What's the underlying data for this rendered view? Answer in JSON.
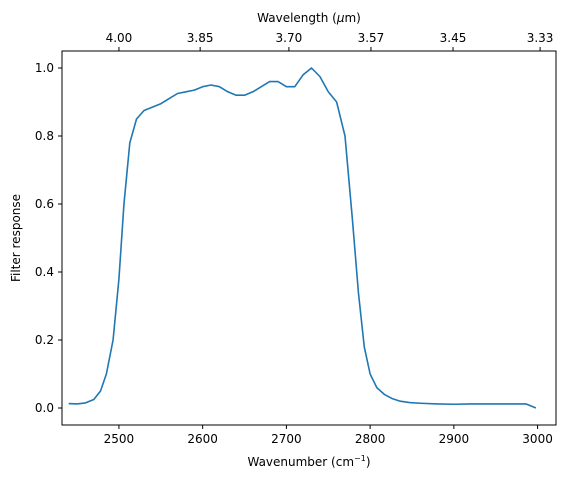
{
  "chart_data": {
    "type": "line",
    "xlabel": "Wavenumber (cm",
    "xlabel_sup": "−1",
    "xlabel_tail": ")",
    "ylabel": "Filter response",
    "top_label": "Wavelength (",
    "top_label_mu": "μ",
    "top_label_tail": "m)",
    "xlim": [
      2432,
      3022
    ],
    "ylim": [
      -0.05,
      1.05
    ],
    "grid": false,
    "legend": "none",
    "line_color": "#1f77b4",
    "xticks": [
      2500,
      2600,
      2700,
      2800,
      2900,
      3000
    ],
    "xtick_labels": [
      "2500",
      "2600",
      "2700",
      "2800",
      "2900",
      "3000"
    ],
    "yticks": [
      0.0,
      0.2,
      0.4,
      0.6,
      0.8,
      1.0
    ],
    "ytick_labels": [
      "0.0",
      "0.2",
      "0.4",
      "0.6",
      "0.8",
      "1.0"
    ],
    "top_ticks": [
      2500,
      2597,
      2703,
      2801,
      2899,
      3003
    ],
    "top_tick_labels": [
      "4.00",
      "3.85",
      "3.70",
      "3.57",
      "3.45",
      "3.33"
    ],
    "series": [
      {
        "x": [
          2440,
          2450,
          2460,
          2470,
          2478,
          2485,
          2493,
          2500,
          2506,
          2513,
          2521,
          2530,
          2540,
          2550,
          2560,
          2570,
          2580,
          2590,
          2600,
          2610,
          2620,
          2630,
          2640,
          2650,
          2660,
          2670,
          2680,
          2690,
          2700,
          2710,
          2720,
          2730,
          2740,
          2750,
          2760,
          2770,
          2779,
          2786,
          2793,
          2800,
          2808,
          2817,
          2826,
          2836,
          2847,
          2860,
          2880,
          2900,
          2920,
          2940,
          2960,
          2980,
          2986,
          2993,
          2998
        ],
        "y": [
          0.013,
          0.012,
          0.015,
          0.025,
          0.05,
          0.1,
          0.2,
          0.38,
          0.6,
          0.78,
          0.85,
          0.875,
          0.885,
          0.895,
          0.91,
          0.925,
          0.93,
          0.935,
          0.945,
          0.95,
          0.945,
          0.93,
          0.92,
          0.92,
          0.93,
          0.945,
          0.96,
          0.96,
          0.945,
          0.945,
          0.98,
          1.0,
          0.975,
          0.93,
          0.9,
          0.8,
          0.55,
          0.34,
          0.18,
          0.1,
          0.06,
          0.04,
          0.028,
          0.02,
          0.016,
          0.014,
          0.012,
          0.011,
          0.012,
          0.012,
          0.012,
          0.012,
          0.012,
          0.005,
          0.0
        ]
      }
    ]
  }
}
